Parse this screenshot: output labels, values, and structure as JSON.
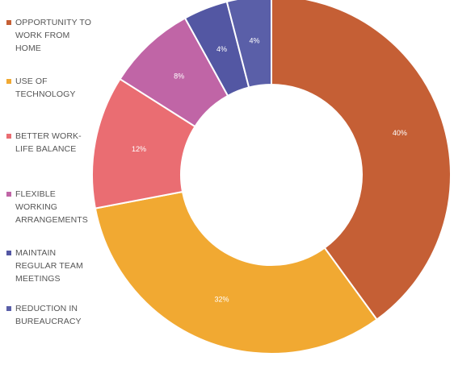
{
  "chart_data": {
    "type": "pie",
    "donut": true,
    "title": "",
    "legend_position": "left",
    "categories": [
      "OPPORTUNITY TO WORK FROM HOME",
      "USE OF TECHNOLOGY",
      "BETTER WORK-LIFE BALANCE",
      "FLEXIBLE WORKING ARRANGEMENTS",
      "MAINTAIN REGULAR TEAM MEETINGS",
      "REDUCTION IN BUREAUCRACY"
    ],
    "legend_lines": [
      [
        "OPPORTUNITY TO",
        "WORK FROM",
        "HOME"
      ],
      [
        "USE OF",
        "TECHNOLOGY"
      ],
      [
        "BETTER WORK-",
        "LIFE BALANCE"
      ],
      [
        "FLEXIBLE",
        "WORKING",
        "ARRANGEMENTS"
      ],
      [
        "MAINTAIN",
        "REGULAR TEAM",
        "MEETINGS"
      ],
      [
        "REDUCTION IN",
        "BUREAUCRACY"
      ]
    ],
    "values": [
      40,
      32,
      12,
      8,
      4,
      4
    ],
    "data_labels": [
      "40%",
      "32%",
      "12%",
      "8%",
      "4%",
      "4%"
    ],
    "colors": [
      "#C55F35",
      "#F1A932",
      "#EA6D72",
      "#C065A6",
      "#5357A3",
      "#5A5FA8"
    ]
  }
}
